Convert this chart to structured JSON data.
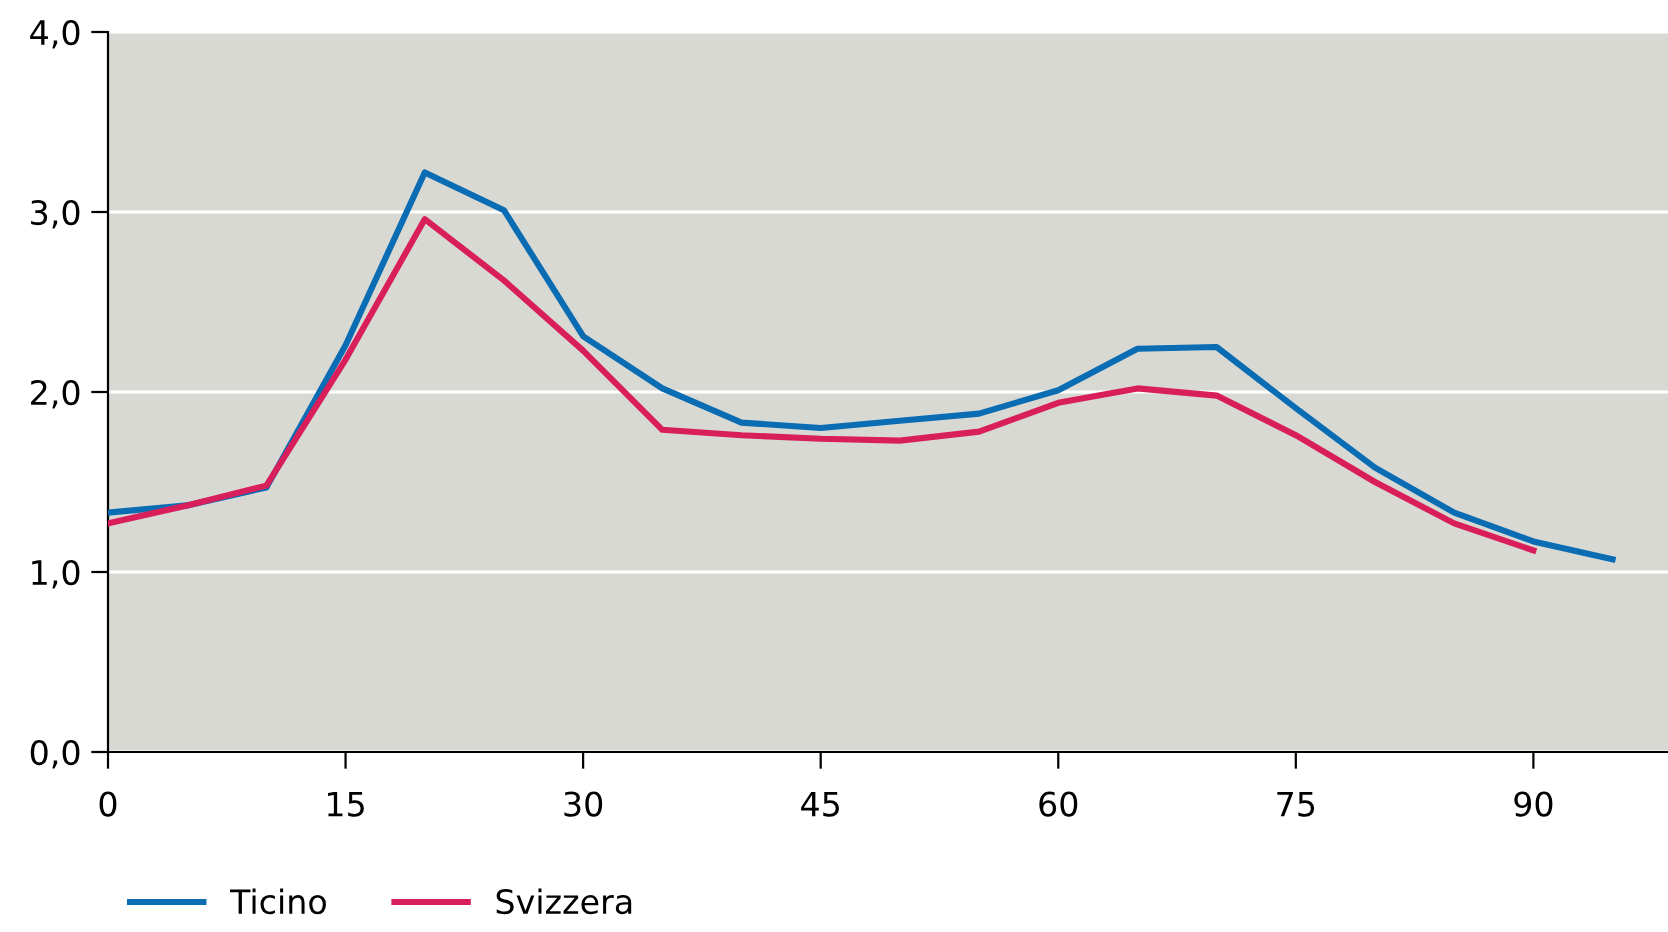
{
  "chart_data": {
    "type": "line",
    "x": [
      0,
      5,
      10,
      15,
      20,
      25,
      30,
      35,
      40,
      45,
      50,
      55,
      60,
      65,
      70,
      75,
      80,
      85,
      90,
      95
    ],
    "series": [
      {
        "name": "Ticino",
        "color": "#0a6cb3",
        "values": [
          1.33,
          1.37,
          1.47,
          2.26,
          3.22,
          3.01,
          2.31,
          2.02,
          1.83,
          1.8,
          1.84,
          1.88,
          2.01,
          2.24,
          2.25,
          1.91,
          1.58,
          1.33,
          1.17,
          1.07
        ]
      },
      {
        "name": "Svizzera",
        "color": "#d81f5c",
        "values": [
          1.27,
          1.37,
          1.48,
          2.18,
          2.96,
          2.62,
          2.23,
          1.79,
          1.76,
          1.74,
          1.73,
          1.78,
          1.94,
          2.02,
          1.98,
          1.76,
          1.5,
          1.27,
          1.12,
          null
        ]
      }
    ],
    "xlim": [
      0,
      98.5
    ],
    "xticks": [
      0,
      15,
      30,
      45,
      60,
      75,
      90
    ],
    "ylim": [
      0,
      4
    ],
    "yticks": [
      {
        "value": 0,
        "label": "0,0"
      },
      {
        "value": 1,
        "label": "1,0"
      },
      {
        "value": 2,
        "label": "2,0"
      },
      {
        "value": 3,
        "label": "3,0"
      },
      {
        "value": 4,
        "label": "4,0"
      }
    ],
    "grid": "y",
    "legend": "bottom left",
    "marker": "none",
    "line_style": "solid"
  }
}
